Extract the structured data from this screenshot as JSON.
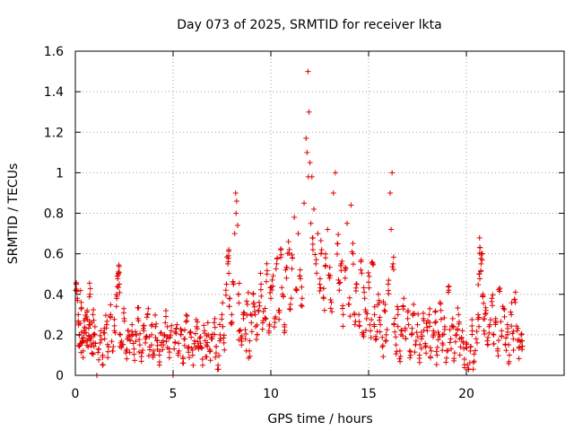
{
  "chart_data": {
    "type": "scatter",
    "title": "Day 073 of 2025, SRMTID for receiver lkta",
    "xlabel": "GPS time / hours",
    "ylabel": "SRMTID / TECUs",
    "xlim": [
      0,
      25
    ],
    "ylim": [
      0,
      1.6
    ],
    "x_ticks": [
      0,
      5,
      10,
      15,
      20
    ],
    "x_tick_labels": [
      "0",
      "5",
      "10",
      "15",
      "20"
    ],
    "y_ticks": [
      0,
      0.2,
      0.4,
      0.6,
      0.8,
      1.0,
      1.2,
      1.4,
      1.6
    ],
    "y_tick_labels": [
      "0",
      "0.2",
      "0.4",
      "0.6",
      "0.8",
      "1",
      "1.2",
      "1.4",
      "1.6"
    ],
    "grid": true,
    "marker": "plus",
    "color": "#e00000",
    "series": [
      {
        "name": "SRMTID",
        "points": [
          [
            0.05,
            0.45
          ],
          [
            0.1,
            0.38
          ],
          [
            0.15,
            0.3
          ],
          [
            0.2,
            0.2
          ],
          [
            0.25,
            0.15
          ],
          [
            0.3,
            0.36
          ],
          [
            0.35,
            0.18
          ],
          [
            0.4,
            0.12
          ],
          [
            0.45,
            0.22
          ],
          [
            0.5,
            0.28
          ],
          [
            0.55,
            0.17
          ],
          [
            0.6,
            0.32
          ],
          [
            0.65,
            0.14
          ],
          [
            0.7,
            0.25
          ],
          [
            0.75,
            0.4
          ],
          [
            0.8,
            0.19
          ],
          [
            0.85,
            0.11
          ],
          [
            0.9,
            0.3
          ],
          [
            0.95,
            0.16
          ],
          [
            1.0,
            0.2
          ],
          [
            1.1,
            0.0
          ],
          [
            1.2,
            0.13
          ],
          [
            1.3,
            0.22
          ],
          [
            1.4,
            0.1
          ],
          [
            1.5,
            0.18
          ],
          [
            1.6,
            0.25
          ],
          [
            1.7,
            0.14
          ],
          [
            1.8,
            0.3
          ],
          [
            1.9,
            0.12
          ],
          [
            2.0,
            0.22
          ],
          [
            2.1,
            0.34
          ],
          [
            2.15,
            0.49
          ],
          [
            2.2,
            0.51
          ],
          [
            2.25,
            0.45
          ],
          [
            2.3,
            0.2
          ],
          [
            2.4,
            0.15
          ],
          [
            2.5,
            0.28
          ],
          [
            2.6,
            0.12
          ],
          [
            2.7,
            0.22
          ],
          [
            2.8,
            0.17
          ],
          [
            2.9,
            0.25
          ],
          [
            3.0,
            0.13
          ],
          [
            3.1,
            0.2
          ],
          [
            3.2,
            0.28
          ],
          [
            3.3,
            0.15
          ],
          [
            3.4,
            0.11
          ],
          [
            3.5,
            0.22
          ],
          [
            3.6,
            0.18
          ],
          [
            3.7,
            0.3
          ],
          [
            3.8,
            0.14
          ],
          [
            3.9,
            0.2
          ],
          [
            4.0,
            0.12
          ],
          [
            4.1,
            0.24
          ],
          [
            4.2,
            0.17
          ],
          [
            4.3,
            0.1
          ],
          [
            4.4,
            0.21
          ],
          [
            4.5,
            0.15
          ],
          [
            4.6,
            0.26
          ],
          [
            4.7,
            0.19
          ],
          [
            4.8,
            0.13
          ],
          [
            4.9,
            0.22
          ],
          [
            5.0,
            0.0
          ],
          [
            5.1,
            0.16
          ],
          [
            5.2,
            0.25
          ],
          [
            5.3,
            0.12
          ],
          [
            5.4,
            0.2
          ],
          [
            5.5,
            0.09
          ],
          [
            5.6,
            0.18
          ],
          [
            5.7,
            0.27
          ],
          [
            5.8,
            0.14
          ],
          [
            5.9,
            0.21
          ],
          [
            6.0,
            0.1
          ],
          [
            6.1,
            0.17
          ],
          [
            6.2,
            0.24
          ],
          [
            6.3,
            0.13
          ],
          [
            6.4,
            0.19
          ],
          [
            6.5,
            0.08
          ],
          [
            6.6,
            0.22
          ],
          [
            6.7,
            0.15
          ],
          [
            6.8,
            0.2
          ],
          [
            6.9,
            0.12
          ],
          [
            7.0,
            0.18
          ],
          [
            7.1,
            0.26
          ],
          [
            7.2,
            0.11
          ],
          [
            7.3,
            0.05
          ],
          [
            7.4,
            0.2
          ],
          [
            7.5,
            0.3
          ],
          [
            7.6,
            0.16
          ],
          [
            7.7,
            0.42
          ],
          [
            7.8,
            0.55
          ],
          [
            7.85,
            0.62
          ],
          [
            7.9,
            0.38
          ],
          [
            8.0,
            0.3
          ],
          [
            8.1,
            0.45
          ],
          [
            8.15,
            0.7
          ],
          [
            8.2,
            0.9
          ],
          [
            8.22,
            0.8
          ],
          [
            8.25,
            0.86
          ],
          [
            8.3,
            0.74
          ],
          [
            8.35,
            0.4
          ],
          [
            8.4,
            0.22
          ],
          [
            8.5,
            0.15
          ],
          [
            8.6,
            0.28
          ],
          [
            8.7,
            0.18
          ],
          [
            8.8,
            0.35
          ],
          [
            8.9,
            0.12
          ],
          [
            9.0,
            0.26
          ],
          [
            9.1,
            0.4
          ],
          [
            9.2,
            0.3
          ],
          [
            9.3,
            0.2
          ],
          [
            9.4,
            0.36
          ],
          [
            9.5,
            0.45
          ],
          [
            9.6,
            0.27
          ],
          [
            9.7,
            0.33
          ],
          [
            9.8,
            0.5
          ],
          [
            9.9,
            0.22
          ],
          [
            10.0,
            0.38
          ],
          [
            10.1,
            0.44
          ],
          [
            10.2,
            0.28
          ],
          [
            10.3,
            0.55
          ],
          [
            10.4,
            0.32
          ],
          [
            10.5,
            0.62
          ],
          [
            10.6,
            0.4
          ],
          [
            10.7,
            0.25
          ],
          [
            10.8,
            0.48
          ],
          [
            10.9,
            0.66
          ],
          [
            11.0,
            0.35
          ],
          [
            11.1,
            0.58
          ],
          [
            11.2,
            0.78
          ],
          [
            11.3,
            0.42
          ],
          [
            11.4,
            0.7
          ],
          [
            11.5,
            0.52
          ],
          [
            11.6,
            0.38
          ],
          [
            11.7,
            0.85
          ],
          [
            11.8,
            1.17
          ],
          [
            11.85,
            1.1
          ],
          [
            11.9,
            1.5
          ],
          [
            11.92,
            0.98
          ],
          [
            11.95,
            1.3
          ],
          [
            12.0,
            1.05
          ],
          [
            12.05,
            0.75
          ],
          [
            12.1,
            0.98
          ],
          [
            12.15,
            0.62
          ],
          [
            12.2,
            0.82
          ],
          [
            12.3,
            0.55
          ],
          [
            12.4,
            0.7
          ],
          [
            12.5,
            0.45
          ],
          [
            12.6,
            0.62
          ],
          [
            12.7,
            0.38
          ],
          [
            12.8,
            0.58
          ],
          [
            12.9,
            0.72
          ],
          [
            13.0,
            0.48
          ],
          [
            13.1,
            0.36
          ],
          [
            13.2,
            0.9
          ],
          [
            13.3,
            1.0
          ],
          [
            13.4,
            0.65
          ],
          [
            13.5,
            0.42
          ],
          [
            13.6,
            0.55
          ],
          [
            13.7,
            0.3
          ],
          [
            13.8,
            0.48
          ],
          [
            13.9,
            0.75
          ],
          [
            14.0,
            0.35
          ],
          [
            14.1,
            0.84
          ],
          [
            14.2,
            0.6
          ],
          [
            14.3,
            0.25
          ],
          [
            14.4,
            0.45
          ],
          [
            14.5,
            0.3
          ],
          [
            14.6,
            0.52
          ],
          [
            14.7,
            0.2
          ],
          [
            14.8,
            0.38
          ],
          [
            14.9,
            0.28
          ],
          [
            15.0,
            0.46
          ],
          [
            15.1,
            0.22
          ],
          [
            15.2,
            0.55
          ],
          [
            15.3,
            0.3
          ],
          [
            15.4,
            0.18
          ],
          [
            15.5,
            0.4
          ],
          [
            15.6,
            0.25
          ],
          [
            15.7,
            0.14
          ],
          [
            15.8,
            0.32
          ],
          [
            15.9,
            0.2
          ],
          [
            16.0,
            0.45
          ],
          [
            16.1,
            0.9
          ],
          [
            16.15,
            0.72
          ],
          [
            16.2,
            1.0
          ],
          [
            16.25,
            0.55
          ],
          [
            16.3,
            0.25
          ],
          [
            16.4,
            0.15
          ],
          [
            16.5,
            0.3
          ],
          [
            16.6,
            0.12
          ],
          [
            16.7,
            0.22
          ],
          [
            16.8,
            0.38
          ],
          [
            16.9,
            0.18
          ],
          [
            17.0,
            0.28
          ],
          [
            17.1,
            0.12
          ],
          [
            17.2,
            0.2
          ],
          [
            17.3,
            0.35
          ],
          [
            17.4,
            0.15
          ],
          [
            17.5,
            0.25
          ],
          [
            17.6,
            0.1
          ],
          [
            17.7,
            0.18
          ],
          [
            17.8,
            0.28
          ],
          [
            17.9,
            0.14
          ],
          [
            18.0,
            0.22
          ],
          [
            18.1,
            0.3
          ],
          [
            18.2,
            0.12
          ],
          [
            18.3,
            0.19
          ],
          [
            18.4,
            0.26
          ],
          [
            18.5,
            0.1
          ],
          [
            18.6,
            0.2
          ],
          [
            18.7,
            0.32
          ],
          [
            18.8,
            0.15
          ],
          [
            18.9,
            0.24
          ],
          [
            19.0,
            0.12
          ],
          [
            19.1,
            0.42
          ],
          [
            19.2,
            0.18
          ],
          [
            19.3,
            0.28
          ],
          [
            19.4,
            0.11
          ],
          [
            19.5,
            0.2
          ],
          [
            19.6,
            0.3
          ],
          [
            19.7,
            0.14
          ],
          [
            19.8,
            0.22
          ],
          [
            19.9,
            0.08
          ],
          [
            20.0,
            0.16
          ],
          [
            20.1,
            0.03
          ],
          [
            20.2,
            0.12
          ],
          [
            20.3,
            0.22
          ],
          [
            20.4,
            0.07
          ],
          [
            20.5,
            0.18
          ],
          [
            20.6,
            0.3
          ],
          [
            20.65,
            0.5
          ],
          [
            20.7,
            0.63
          ],
          [
            20.75,
            0.55
          ],
          [
            20.8,
            0.6
          ],
          [
            20.85,
            0.4
          ],
          [
            20.9,
            0.22
          ],
          [
            21.0,
            0.32
          ],
          [
            21.1,
            0.15
          ],
          [
            21.2,
            0.25
          ],
          [
            21.3,
            0.38
          ],
          [
            21.4,
            0.2
          ],
          [
            21.5,
            0.28
          ],
          [
            21.6,
            0.12
          ],
          [
            21.7,
            0.43
          ],
          [
            21.8,
            0.22
          ],
          [
            21.9,
            0.33
          ],
          [
            22.0,
            0.15
          ],
          [
            22.1,
            0.25
          ],
          [
            22.2,
            0.1
          ],
          [
            22.3,
            0.3
          ],
          [
            22.4,
            0.18
          ],
          [
            22.5,
            0.36
          ],
          [
            22.6,
            0.22
          ],
          [
            22.7,
            0.14
          ],
          [
            22.8,
            0.2
          ],
          [
            22.85,
            0.17
          ]
        ]
      }
    ]
  }
}
